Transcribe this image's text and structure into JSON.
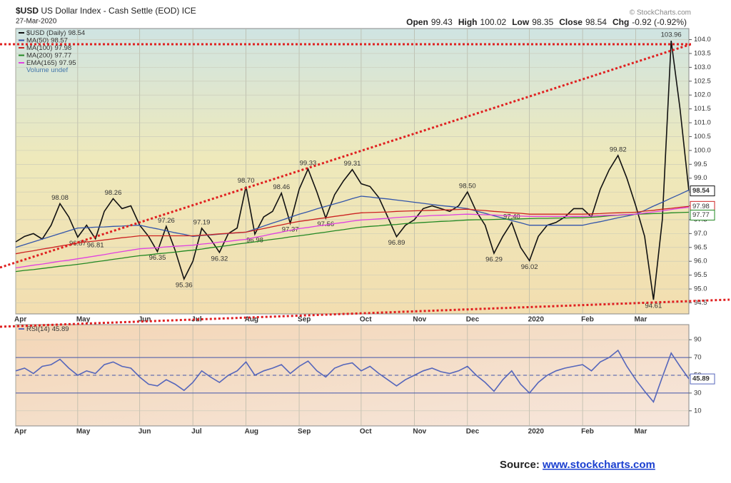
{
  "symbol": "$USD",
  "title": "US Dollar Index - Cash Settle (EOD) ICE",
  "date": "27-Mar-2020",
  "credit": "© StockCharts.com",
  "quote": [
    {
      "label": "Open",
      "value": 99.43
    },
    {
      "label": "High",
      "value": 100.02
    },
    {
      "label": "Low",
      "value": 98.35
    },
    {
      "label": "Close",
      "value": 98.54
    },
    {
      "label": "Chg",
      "value": "-0.92 (-0.92%)"
    }
  ],
  "source": {
    "label": "Source:",
    "link": "www.stockcharts.com"
  },
  "chart_data": [
    {
      "type": "line",
      "categories": [
        "Apr",
        null,
        null,
        null,
        null,
        null,
        null,
        "May",
        null,
        null,
        null,
        null,
        null,
        null,
        "Jun",
        null,
        null,
        null,
        null,
        null,
        "Jul",
        null,
        null,
        null,
        null,
        null,
        "Aug",
        null,
        null,
        null,
        null,
        null,
        "Sep",
        null,
        null,
        null,
        null,
        null,
        null,
        "Oct",
        null,
        null,
        null,
        null,
        null,
        "Nov",
        null,
        null,
        null,
        null,
        null,
        "Dec",
        null,
        null,
        null,
        null,
        null,
        null,
        "2020",
        null,
        null,
        null,
        null,
        null,
        "Feb",
        null,
        null,
        null,
        null,
        null,
        "Mar",
        null,
        null,
        null,
        null,
        null,
        null
      ],
      "series": [
        {
          "name": "$USD (Daily)",
          "color": "#111111",
          "values": [
            96.7,
            96.9,
            97.0,
            96.8,
            97.3,
            98.08,
            97.6,
            96.87,
            97.3,
            96.81,
            97.8,
            98.26,
            97.9,
            98.0,
            97.3,
            96.9,
            96.35,
            97.26,
            96.4,
            95.36,
            96.0,
            97.19,
            96.8,
            96.32,
            97.0,
            97.2,
            98.7,
            96.98,
            97.6,
            97.8,
            98.46,
            97.37,
            98.6,
            99.33,
            98.5,
            97.56,
            98.4,
            98.9,
            99.31,
            98.8,
            98.7,
            98.3,
            97.6,
            96.89,
            97.3,
            97.5,
            97.9,
            98.0,
            97.9,
            97.8,
            98.0,
            98.5,
            97.8,
            97.3,
            96.29,
            96.9,
            97.4,
            96.5,
            96.02,
            96.9,
            97.3,
            97.4,
            97.6,
            97.9,
            97.9,
            97.6,
            98.6,
            99.3,
            99.82,
            99.0,
            98.0,
            96.9,
            94.61,
            97.5,
            103.96,
            101.5,
            98.54
          ],
          "value_labels": [
            null,
            null,
            null,
            null,
            null,
            "98.08",
            null,
            "96.87",
            null,
            "96.81",
            null,
            "98.26",
            null,
            null,
            null,
            null,
            "96.35",
            "97.26",
            null,
            "95.36",
            null,
            "97.19",
            null,
            "96.32",
            null,
            null,
            "98.70",
            "96.98",
            null,
            null,
            "98.46",
            "97.37",
            null,
            "99.33",
            null,
            "97.56",
            null,
            null,
            "99.31",
            null,
            null,
            null,
            null,
            "96.89",
            null,
            null,
            null,
            null,
            null,
            null,
            null,
            "98.50",
            null,
            null,
            "96.29",
            null,
            "97.40",
            null,
            "96.02",
            null,
            null,
            null,
            null,
            null,
            null,
            null,
            null,
            null,
            "99.82",
            null,
            null,
            null,
            "94.61",
            null,
            "103.96",
            null,
            null
          ]
        },
        {
          "name": "MA(50)",
          "color": "#3355aa",
          "values": [
            96.5,
            96.6,
            96.7,
            96.8,
            96.9,
            97.0,
            97.1,
            97.2,
            97.21,
            97.23,
            97.24,
            97.26,
            97.27,
            97.29,
            97.3,
            97.23,
            97.17,
            97.1,
            97.03,
            96.97,
            96.9,
            96.93,
            96.95,
            96.98,
            97.0,
            97.03,
            97.05,
            97.16,
            97.27,
            97.38,
            97.48,
            97.59,
            97.7,
            97.79,
            97.89,
            97.98,
            98.07,
            98.16,
            98.26,
            98.35,
            98.32,
            98.28,
            98.25,
            98.21,
            98.17,
            98.13,
            98.09,
            98.05,
            98.01,
            97.98,
            97.94,
            97.9,
            97.81,
            97.73,
            97.64,
            97.56,
            97.47,
            97.39,
            97.3,
            97.3,
            97.3,
            97.3,
            97.3,
            97.3,
            97.3,
            97.37,
            97.43,
            97.5,
            97.57,
            97.63,
            97.7,
            97.84,
            97.99,
            98.13,
            98.28,
            98.42,
            98.57
          ]
        },
        {
          "name": "MA(100)",
          "color": "#cc2222",
          "values": [
            96.27,
            96.33,
            96.38,
            96.44,
            96.49,
            96.55,
            96.6,
            96.66,
            96.7,
            96.73,
            96.77,
            96.81,
            96.85,
            96.88,
            96.92,
            96.92,
            96.92,
            96.92,
            96.92,
            96.92,
            96.92,
            96.94,
            96.96,
            96.99,
            97.01,
            97.03,
            97.05,
            97.12,
            97.18,
            97.25,
            97.31,
            97.38,
            97.44,
            97.48,
            97.53,
            97.57,
            97.62,
            97.66,
            97.71,
            97.75,
            97.76,
            97.77,
            97.78,
            97.8,
            97.81,
            97.82,
            97.83,
            97.84,
            97.85,
            97.86,
            97.87,
            97.88,
            97.85,
            97.83,
            97.8,
            97.78,
            97.75,
            97.73,
            97.7,
            97.7,
            97.7,
            97.7,
            97.7,
            97.7,
            97.7,
            97.71,
            97.72,
            97.74,
            97.75,
            97.76,
            97.77,
            97.81,
            97.84,
            97.88,
            97.91,
            97.95,
            97.98
          ]
        },
        {
          "name": "MA(200)",
          "color": "#228822",
          "values": [
            95.63,
            95.67,
            95.7,
            95.74,
            95.78,
            95.82,
            95.85,
            95.89,
            95.93,
            95.98,
            96.02,
            96.07,
            96.11,
            96.16,
            96.2,
            96.23,
            96.27,
            96.3,
            96.33,
            96.37,
            96.4,
            96.44,
            96.49,
            96.53,
            96.57,
            96.62,
            96.66,
            96.7,
            96.75,
            96.79,
            96.83,
            96.88,
            96.92,
            96.96,
            97.01,
            97.05,
            97.1,
            97.14,
            97.19,
            97.23,
            97.26,
            97.28,
            97.31,
            97.33,
            97.36,
            97.38,
            97.4,
            97.42,
            97.44,
            97.45,
            97.47,
            97.49,
            97.5,
            97.5,
            97.51,
            97.52,
            97.52,
            97.53,
            97.54,
            97.55,
            97.55,
            97.56,
            97.56,
            97.57,
            97.57,
            97.59,
            97.61,
            97.64,
            97.66,
            97.68,
            97.7,
            97.71,
            97.72,
            97.73,
            97.75,
            97.76,
            97.77
          ]
        },
        {
          "name": "EMA(165)",
          "color": "#e040e0",
          "values": [
            95.76,
            95.81,
            95.86,
            95.9,
            95.95,
            96.0,
            96.04,
            96.09,
            96.14,
            96.19,
            96.24,
            96.3,
            96.35,
            96.4,
            96.45,
            96.47,
            96.49,
            96.52,
            96.54,
            96.56,
            96.58,
            96.62,
            96.65,
            96.69,
            96.72,
            96.76,
            96.79,
            96.86,
            96.92,
            96.99,
            97.05,
            97.12,
            97.18,
            97.22,
            97.27,
            97.31,
            97.36,
            97.4,
            97.45,
            97.49,
            97.51,
            97.53,
            97.55,
            97.58,
            97.6,
            97.62,
            97.63,
            97.65,
            97.66,
            97.67,
            97.69,
            97.7,
            97.69,
            97.68,
            97.67,
            97.65,
            97.64,
            97.63,
            97.62,
            97.62,
            97.62,
            97.62,
            97.62,
            97.62,
            97.62,
            97.63,
            97.65,
            97.66,
            97.67,
            97.69,
            97.7,
            97.74,
            97.78,
            97.82,
            97.87,
            97.91,
            97.95
          ]
        }
      ],
      "volume_label": "Volume undef",
      "ylim": [
        94.1,
        104.4
      ],
      "yticks": [
        {
          "value": 94.5,
          "label": "94.5"
        },
        {
          "value": 95,
          "label": "95.0"
        },
        {
          "value": 95.5,
          "label": "95.5"
        },
        {
          "value": 96,
          "label": "96.0"
        },
        {
          "value": 96.5,
          "label": "96.5"
        },
        {
          "value": 97,
          "label": "97.0"
        },
        {
          "value": 97.5,
          "label": "97.5"
        },
        {
          "value": 98,
          "label": "98.0"
        },
        {
          "value": 98.5,
          "label": "98.5"
        },
        {
          "value": 99,
          "label": "99.0"
        },
        {
          "value": 99.5,
          "label": "99.5"
        },
        {
          "value": 100,
          "label": "100.0"
        },
        {
          "value": 100.5,
          "label": "100.5"
        },
        {
          "value": 101,
          "label": "101.0"
        },
        {
          "value": 101.5,
          "label": "101.5"
        },
        {
          "value": 102,
          "label": "102.0"
        },
        {
          "value": 102.5,
          "label": "102.5"
        },
        {
          "value": 103,
          "label": "103.0"
        },
        {
          "value": 103.5,
          "label": "103.5"
        },
        {
          "value": 104,
          "label": "104.0"
        }
      ],
      "grid": true
    },
    {
      "type": "line",
      "series": [
        {
          "name": "RSI(14)",
          "color": "#5566bb",
          "values": [
            55,
            58,
            52,
            60,
            62,
            68,
            58,
            50,
            55,
            52,
            62,
            65,
            60,
            58,
            48,
            40,
            38,
            45,
            40,
            33,
            42,
            55,
            48,
            42,
            50,
            55,
            65,
            50,
            55,
            58,
            62,
            52,
            60,
            66,
            55,
            48,
            58,
            62,
            64,
            55,
            60,
            52,
            45,
            38,
            45,
            50,
            55,
            58,
            54,
            52,
            55,
            60,
            50,
            42,
            32,
            45,
            55,
            40,
            30,
            42,
            50,
            55,
            58,
            60,
            62,
            55,
            65,
            70,
            78,
            60,
            45,
            32,
            20,
            48,
            75,
            60,
            45.89
          ]
        }
      ],
      "ylim": [
        -7,
        107
      ],
      "yticks": [
        10,
        30,
        50,
        70,
        90
      ],
      "overbought": 70,
      "oversold": 30,
      "grid": true
    }
  ]
}
